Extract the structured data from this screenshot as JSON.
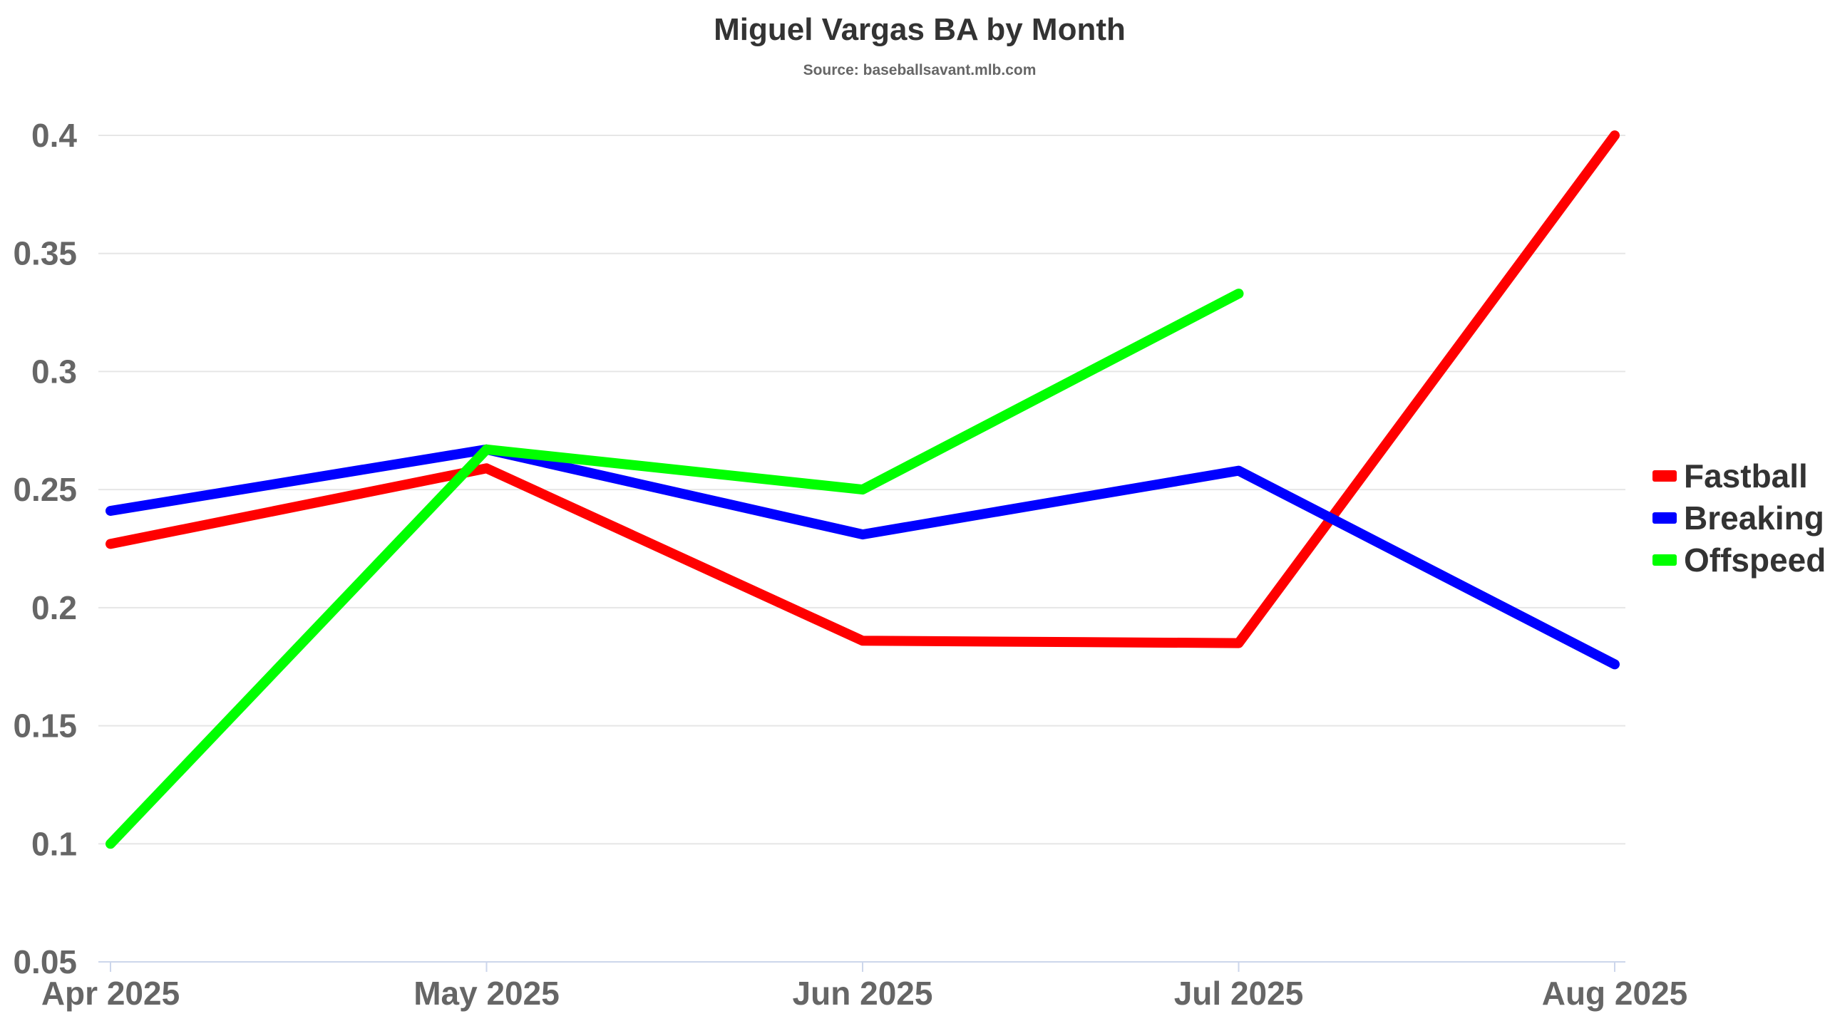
{
  "chart_data": {
    "type": "line",
    "title": "Miguel Vargas BA by Month",
    "subtitle": "Source: baseballsavant.mlb.com",
    "categories": [
      "Apr 2025",
      "May 2025",
      "Jun 2025",
      "Jul 2025",
      "Aug 2025"
    ],
    "ylim": [
      0.05,
      0.4
    ],
    "yticks": [
      "0.05",
      "0.1",
      "0.15",
      "0.2",
      "0.25",
      "0.3",
      "0.35",
      "0.4"
    ],
    "grid": true,
    "legend_position": "right",
    "series": [
      {
        "name": "Fastball",
        "color": "#ff0000",
        "values": [
          0.227,
          0.259,
          0.186,
          0.185,
          0.4
        ]
      },
      {
        "name": "Breaking",
        "color": "#0000ff",
        "values": [
          0.241,
          0.267,
          0.231,
          0.258,
          0.176
        ]
      },
      {
        "name": "Offspeed",
        "color": "#00ff00",
        "values": [
          0.1,
          0.267,
          0.25,
          0.333,
          null
        ]
      }
    ]
  }
}
